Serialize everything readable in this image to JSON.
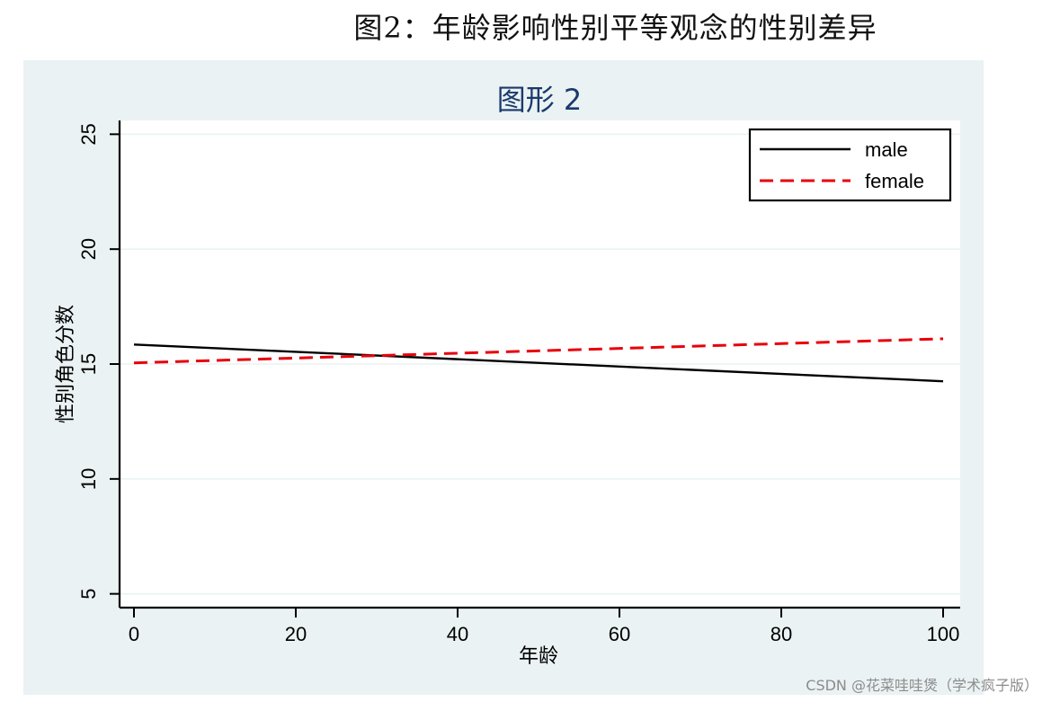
{
  "document": {
    "title": "图2：年龄影响性别平等观念的性别差异",
    "watermark": "CSDN @花菜哇哇煲（学术疯子版）"
  },
  "colors": {
    "outer_background": "#eaf2f3",
    "plot_background": "#ffffff",
    "grid": "#eaf2f3",
    "chart_title": "#1a3a6b",
    "male_line": "#000000",
    "female_line": "#e8000b"
  },
  "chart_data": {
    "type": "line",
    "title": "图形 2",
    "xlabel": "年龄",
    "ylabel": "性别角色分数",
    "xlim": [
      0,
      100
    ],
    "ylim": [
      4.4,
      25.6
    ],
    "xticks": [
      0,
      20,
      40,
      60,
      80,
      100
    ],
    "yticks": [
      5,
      10,
      15,
      20,
      25
    ],
    "grid": true,
    "legend_position": "top-right",
    "x": [
      0,
      100
    ],
    "series": [
      {
        "name": "male",
        "style": "solid",
        "color": "#000000",
        "values": [
          15.85,
          14.25
        ]
      },
      {
        "name": "female",
        "style": "dashed",
        "color": "#e8000b",
        "values": [
          15.05,
          16.1
        ]
      }
    ]
  }
}
